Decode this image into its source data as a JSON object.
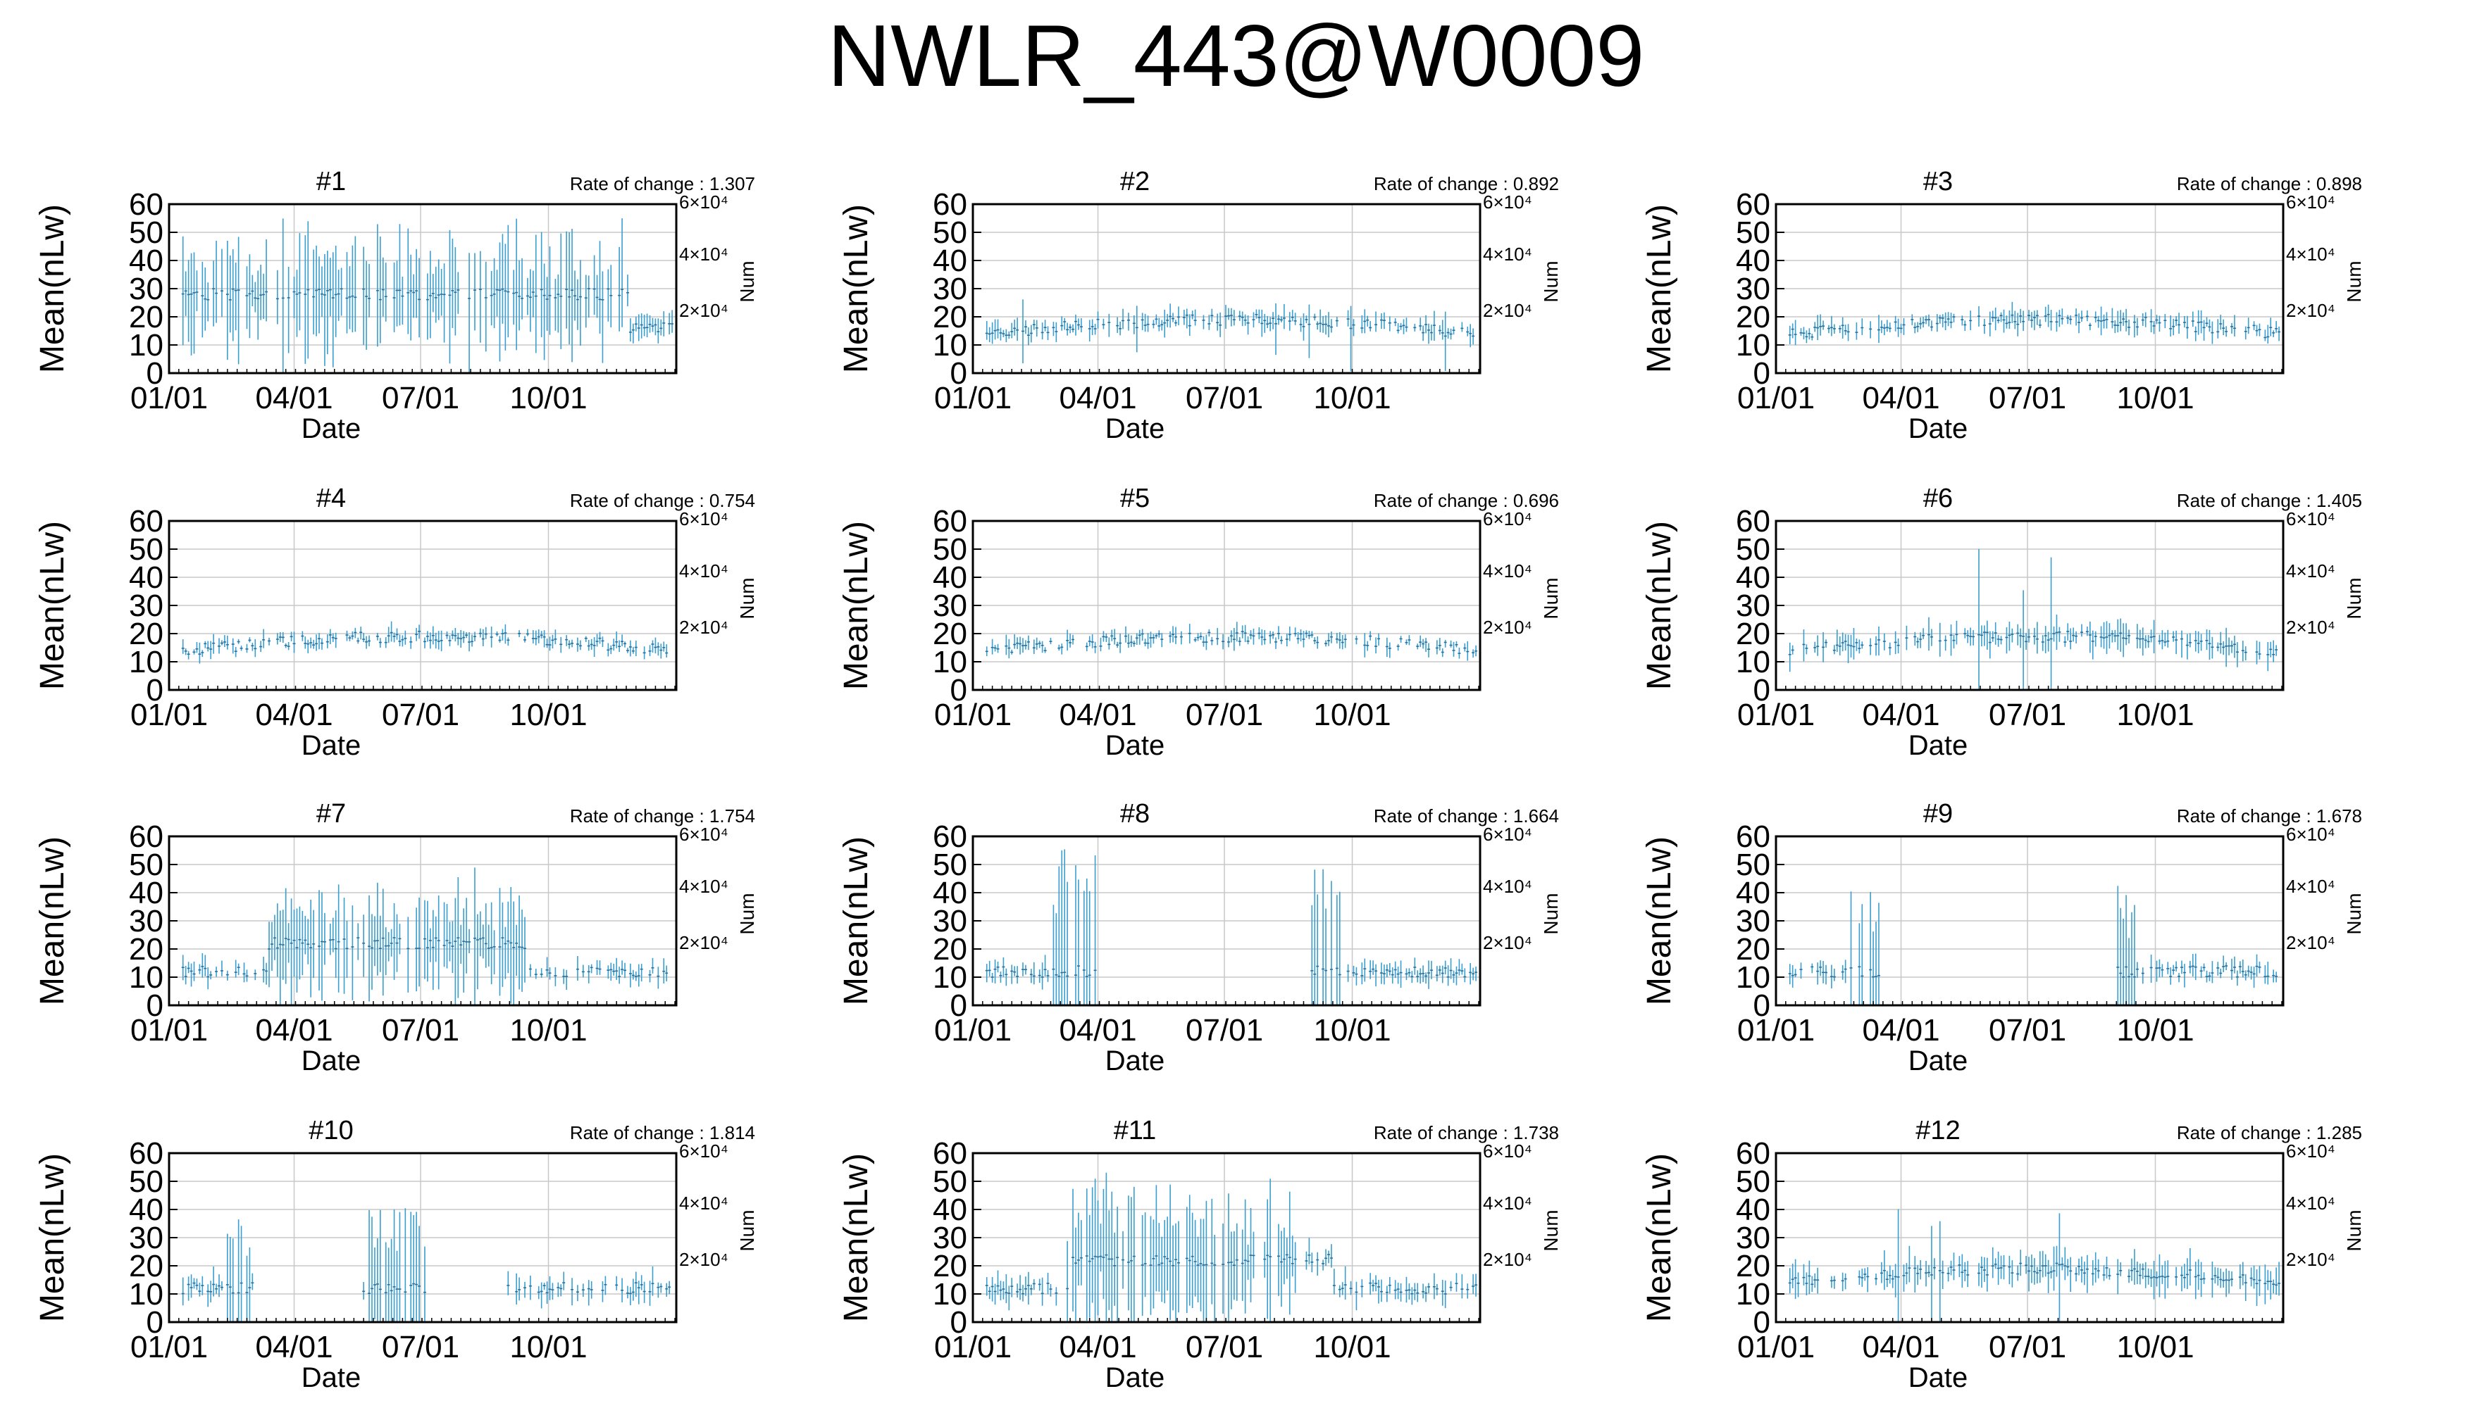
{
  "title": "NWLR_443@W0009",
  "chart_data": {
    "type": "scatter",
    "title": "NWLR_443@W0009",
    "xlabel": "Date",
    "ylabel": "Mean(nLw)",
    "y2label": "Num",
    "x_ticks": [
      "01/01",
      "04/01",
      "07/01",
      "10/01"
    ],
    "y_ticks": [
      "0",
      "10",
      "20",
      "30",
      "40",
      "50",
      "60"
    ],
    "ylim": [
      0,
      60
    ],
    "y2_ticks": [
      "2×10⁴",
      "4×10⁴",
      "6×10⁴"
    ],
    "y2lim": [
      0,
      60000
    ],
    "grid": true,
    "series_color": "#3a9fcf",
    "rate_label": "Rate of change : ",
    "panels": [
      {
        "name": "#1",
        "rate": "1.307"
      },
      {
        "name": "#2",
        "rate": "0.892"
      },
      {
        "name": "#3",
        "rate": "0.898"
      },
      {
        "name": "#4",
        "rate": "0.754"
      },
      {
        "name": "#5",
        "rate": "0.696"
      },
      {
        "name": "#6",
        "rate": "1.405"
      },
      {
        "name": "#7",
        "rate": "1.754"
      },
      {
        "name": "#8",
        "rate": "1.664"
      },
      {
        "name": "#9",
        "rate": "1.678"
      },
      {
        "name": "#10",
        "rate": "1.814"
      },
      {
        "name": "#11",
        "rate": "1.738"
      },
      {
        "name": "#12",
        "rate": "1.285"
      }
    ]
  }
}
